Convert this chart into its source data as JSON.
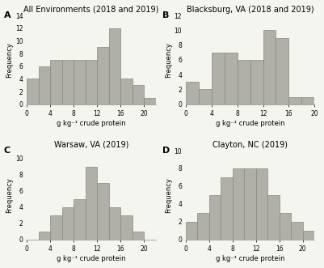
{
  "panels": [
    {
      "label": "A",
      "title": "All Environments (2018 and 2019)",
      "xlabel": "g kg⁻¹ crude protein",
      "ylabel": "Frequency",
      "bar_values": [
        4,
        6,
        7,
        7,
        7,
        7,
        9,
        12,
        4,
        3,
        1
      ],
      "bin_edges": [
        0,
        2,
        4,
        6,
        8,
        10,
        12,
        14,
        16,
        18,
        20,
        22
      ],
      "xlim": [
        0,
        22
      ],
      "ylim": [
        0,
        14
      ]
    },
    {
      "label": "B",
      "title": "Blacksburg, VA (2018 and 2019)",
      "xlabel": "g kg⁻¹ crude protein",
      "ylabel": "Frequency",
      "bar_values": [
        3,
        2,
        7,
        7,
        6,
        6,
        10,
        9,
        1,
        1
      ],
      "bin_edges": [
        0,
        2,
        4,
        6,
        8,
        10,
        12,
        14,
        16,
        18,
        20
      ],
      "xlim": [
        0,
        20
      ],
      "ylim": [
        0,
        12
      ]
    },
    {
      "label": "C",
      "title": "Warsaw, VA (2019)",
      "xlabel": "g kg⁻¹ crude protein",
      "ylabel": "Frequency",
      "bar_values": [
        0,
        1,
        3,
        4,
        5,
        9,
        7,
        4,
        3,
        1,
        0
      ],
      "bin_edges": [
        0,
        2,
        4,
        6,
        8,
        10,
        12,
        14,
        16,
        18,
        20,
        22
      ],
      "xlim": [
        0,
        22
      ],
      "ylim": [
        0,
        11
      ]
    },
    {
      "label": "D",
      "title": "Clayton, NC (2019)",
      "xlabel": "g kg⁻¹ crude protein",
      "ylabel": "Frequency",
      "bar_values": [
        2,
        3,
        5,
        7,
        8,
        8,
        8,
        5,
        3,
        2,
        1
      ],
      "bin_edges": [
        0,
        2,
        4,
        6,
        8,
        10,
        12,
        14,
        16,
        18,
        20,
        22
      ],
      "xlim": [
        0,
        22
      ],
      "ylim": [
        0,
        10
      ]
    }
  ],
  "bar_color": "#b0b0a8",
  "bar_edgecolor": "#888880",
  "background_color": "#f5f5f0",
  "fontsize_title": 7,
  "fontsize_label": 6,
  "fontsize_tick": 5.5,
  "fontsize_panel_label": 8
}
